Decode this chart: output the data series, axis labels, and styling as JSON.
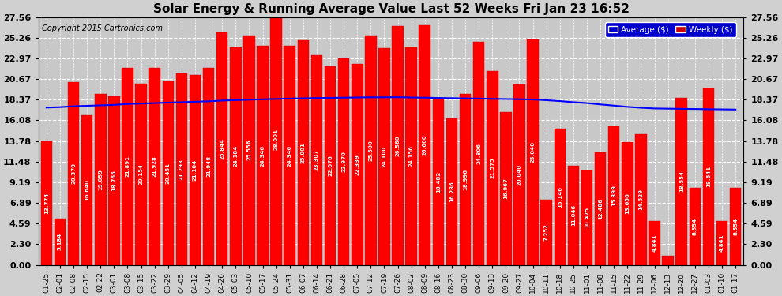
{
  "title": "Solar Energy & Running Average Value Last 52 Weeks Fri Jan 23 16:52",
  "copyright": "Copyright 2015 Cartronics.com",
  "bar_color": "#ff0000",
  "avg_line_color": "#0000ff",
  "background_color": "#d0d0d0",
  "plot_background": "#c8c8c8",
  "yticks": [
    0.0,
    2.3,
    4.59,
    6.89,
    9.19,
    11.48,
    13.78,
    16.08,
    18.37,
    20.67,
    22.97,
    25.26,
    27.56
  ],
  "labels": [
    "01-25",
    "02-01",
    "02-08",
    "02-15",
    "02-22",
    "03-01",
    "03-08",
    "03-15",
    "03-22",
    "03-29",
    "04-05",
    "04-12",
    "04-19",
    "04-26",
    "05-03",
    "05-10",
    "05-17",
    "05-24",
    "05-31",
    "06-07",
    "06-14",
    "06-21",
    "06-28",
    "07-05",
    "07-12",
    "07-19",
    "07-26",
    "08-02",
    "08-09",
    "08-16",
    "08-23",
    "08-30",
    "09-06",
    "09-13",
    "09-20",
    "09-27",
    "10-04",
    "10-11",
    "10-18",
    "10-25",
    "11-01",
    "11-08",
    "11-15",
    "11-22",
    "11-29",
    "12-06",
    "12-13",
    "12-20",
    "12-27",
    "01-03",
    "01-10",
    "01-17"
  ],
  "values": [
    13.774,
    5.184,
    20.37,
    16.64,
    19.059,
    18.765,
    21.891,
    20.154,
    21.928,
    20.451,
    21.293,
    21.104,
    21.948,
    25.844,
    24.184,
    25.556,
    24.346,
    28.001,
    24.346,
    25.001,
    23.307,
    22.076,
    22.97,
    22.339,
    25.5,
    24.1,
    26.56,
    24.156,
    26.66,
    18.482,
    16.286,
    18.996,
    24.806,
    21.575,
    16.967,
    20.04,
    25.04,
    7.252,
    15.146,
    11.046,
    10.475,
    12.486,
    15.399,
    13.65,
    14.529,
    4.841,
    1.006,
    18.554,
    8.554,
    19.641,
    4.841,
    8.554
  ],
  "avg_values": [
    17.5,
    17.55,
    17.65,
    17.7,
    17.75,
    17.8,
    17.9,
    17.95,
    18.0,
    18.05,
    18.1,
    18.15,
    18.2,
    18.28,
    18.33,
    18.38,
    18.42,
    18.46,
    18.5,
    18.53,
    18.56,
    18.58,
    18.6,
    18.62,
    18.64,
    18.64,
    18.65,
    18.62,
    18.6,
    18.57,
    18.55,
    18.52,
    18.5,
    18.47,
    18.45,
    18.43,
    18.4,
    18.32,
    18.22,
    18.1,
    18.0,
    17.85,
    17.72,
    17.58,
    17.48,
    17.4,
    17.38,
    17.36,
    17.34,
    17.32,
    17.3,
    17.28
  ]
}
